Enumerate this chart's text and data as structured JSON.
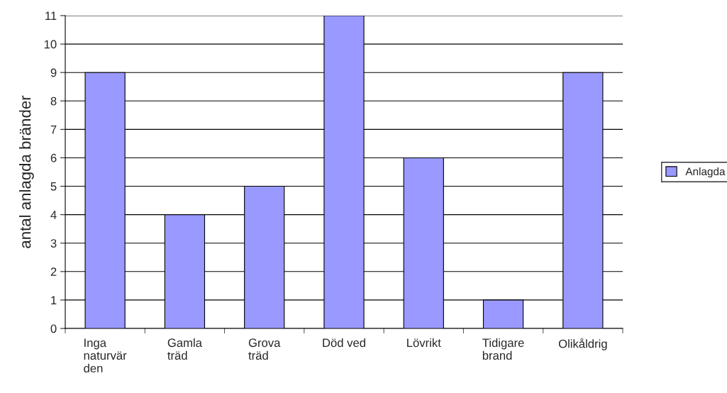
{
  "chart_data": {
    "type": "bar",
    "ylabel": "antal anlagda bränder",
    "categories": [
      "Inga\nnaturvär\nden",
      "Gamla\nträd",
      "Grova\nträd",
      "Död ved",
      "Lövrikt",
      "Tidigare\nbrand",
      "Olikåldrig"
    ],
    "series": [
      {
        "name": "Anlagda",
        "color": "#9999ff",
        "values": [
          9,
          4,
          5,
          11,
          6,
          1,
          9
        ]
      }
    ],
    "ylim": [
      0,
      11
    ],
    "yticks": [
      0,
      1,
      2,
      3,
      4,
      5,
      6,
      7,
      8,
      9,
      10,
      11
    ],
    "grid": "y",
    "legend": "right"
  }
}
